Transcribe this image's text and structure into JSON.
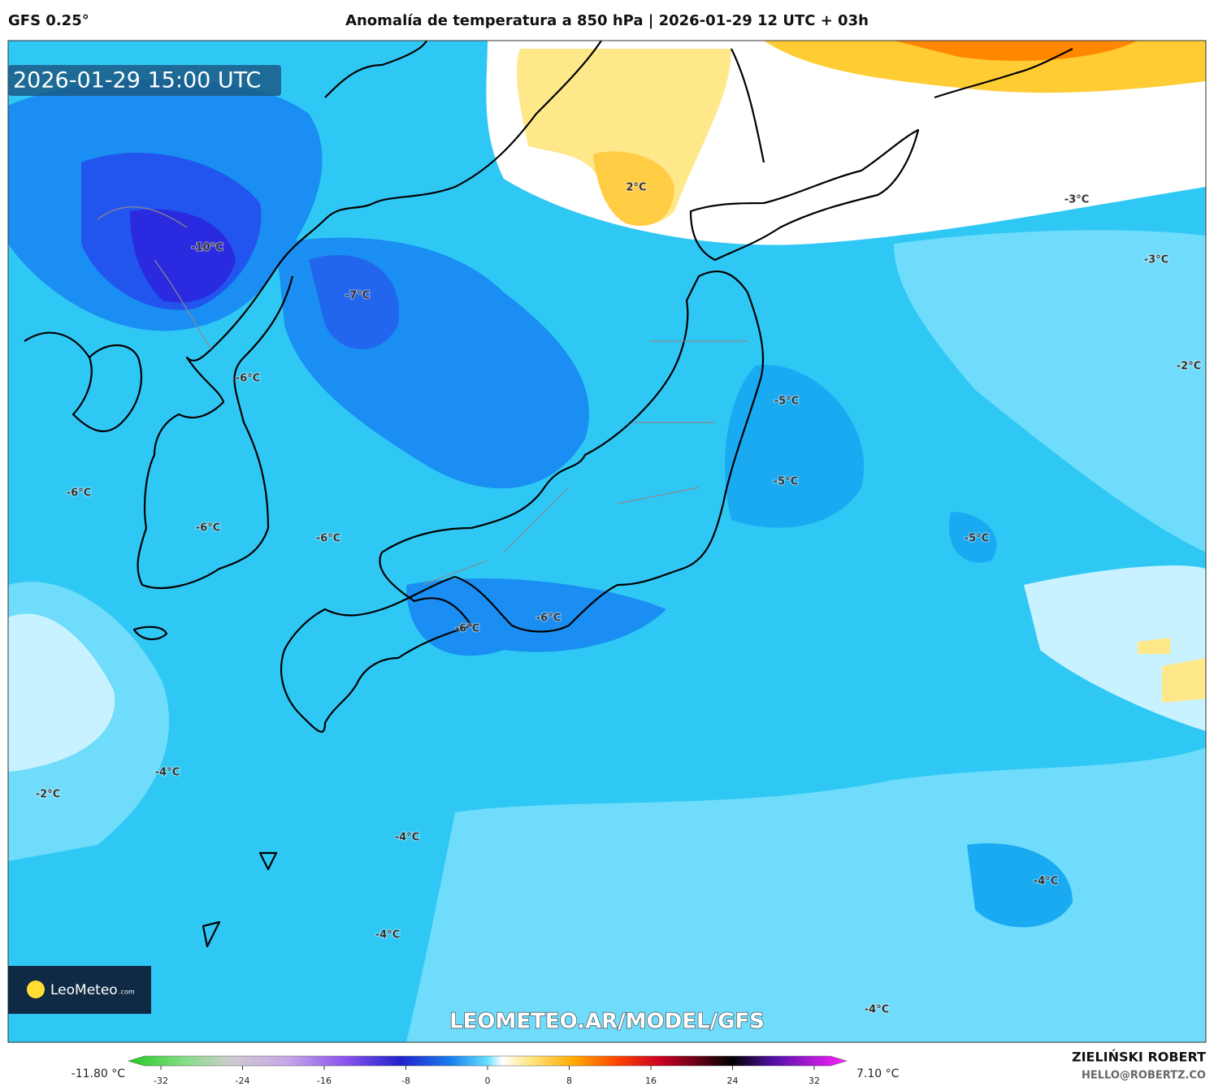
{
  "header": {
    "model": "GFS 0.25°",
    "title": "Anomalía de temperatura a 850 hPa | 2026-01-29 12 UTC + 03h"
  },
  "map": {
    "timestamp": "2026-01-29 15:00 UTC",
    "contour_labels": [
      "-10°C",
      "-7°C",
      "-6°C",
      "2°C",
      "-3°C",
      "-3°C",
      "-2°C",
      "-5°C",
      "-5°C",
      "-5°C",
      "-6°C",
      "-6°C",
      "-6°C",
      "-6°C",
      "-6°C",
      "-4°C",
      "-2°C",
      "-4°C",
      "-4°C",
      "-4°C",
      "-4°C"
    ],
    "logo": "LeoMeteo",
    "logo_suffix": ".com",
    "watermark": "LEOMETEO.AR/MODEL/GFS"
  },
  "colorbar": {
    "min_label": "-11.80 °C",
    "max_label": "7.10 °C",
    "ticks": [
      -32,
      -24,
      -16,
      -8,
      0,
      8,
      16,
      24,
      32
    ]
  },
  "footer": {
    "author": "ZIELIŃSKI ROBERT",
    "email": "HELLO@ROBERTZ.CO"
  }
}
